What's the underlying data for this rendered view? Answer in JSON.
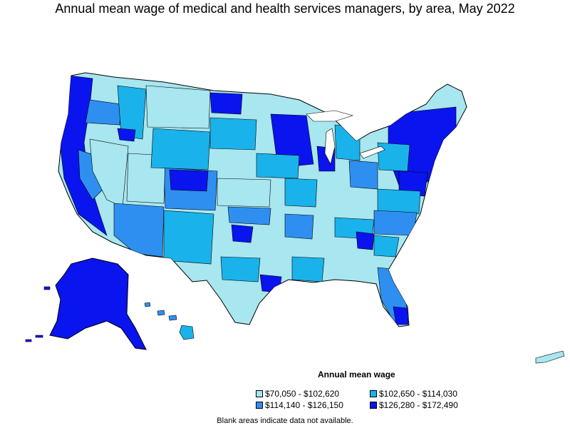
{
  "title": "Annual mean wage of medical and health services managers, by area, May 2022",
  "legend": {
    "title": "Annual mean wage",
    "items": [
      {
        "label": "$70,050 - $102,620",
        "color": "#a8e6f0"
      },
      {
        "label": "$102,650 - $114,030",
        "color": "#1ab2ea"
      },
      {
        "label": "$114,140 - $126,150",
        "color": "#2e8ff0"
      },
      {
        "label": "$126,280 - $172,490",
        "color": "#0a14ee"
      }
    ]
  },
  "footnote": "Blank areas indicate data not available."
}
